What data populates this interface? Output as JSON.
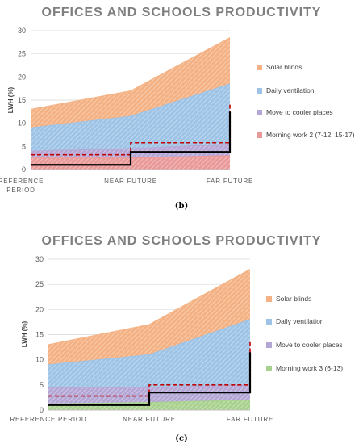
{
  "chart_data": [
    {
      "type": "area",
      "title": "OFFICES AND SCHOOLS PRODUCTIVITY",
      "caption": "(b)",
      "ylabel": "LWH (%)",
      "ylim": [
        0,
        30
      ],
      "yticks": [
        "0",
        "5",
        "10",
        "15",
        "20",
        "25",
        "30"
      ],
      "categories": [
        "REFERENCE\nPERIOD",
        "NEAR FUTURE",
        "FAR FUTURE"
      ],
      "series": [
        {
          "name": "Solar blinds",
          "values": [
            13,
            17,
            28.5
          ],
          "color": "#f4b183"
        },
        {
          "name": "Daily ventilation",
          "values": [
            9,
            11.5,
            18.5
          ],
          "color": "#9dc3e6"
        },
        {
          "name": "Move to cooler places",
          "values": [
            4,
            4.5,
            5.5
          ],
          "color": "#b4a7d6"
        },
        {
          "name": "Morning work 2 (7-12; 15-17)",
          "values": [
            2.5,
            2.5,
            3
          ],
          "color": "#ea9999"
        }
      ],
      "dashed_steps": [
        3.2,
        5.8,
        14.5
      ],
      "solid_steps": [
        1,
        3.8,
        12.5
      ]
    },
    {
      "type": "area",
      "title": "OFFICES AND SCHOOLS PRODUCTIVITY",
      "caption": "(c)",
      "ylabel": "LWH (%)",
      "ylim": [
        0,
        30
      ],
      "yticks": [
        "0",
        "5",
        "10",
        "15",
        "20",
        "25",
        "30"
      ],
      "categories": [
        "REFERENCE PERIOD",
        "NEAR FUTURE",
        "FAR FUTURE"
      ],
      "series": [
        {
          "name": "Solar blinds",
          "values": [
            13,
            17,
            28
          ],
          "color": "#f4b183"
        },
        {
          "name": "Daily ventilation",
          "values": [
            9,
            11,
            18
          ],
          "color": "#9dc3e6"
        },
        {
          "name": "Move to cooler places",
          "values": [
            4.5,
            4.5,
            5
          ],
          "color": "#b4a7d6"
        },
        {
          "name": "Morning work 3 (6-13)",
          "values": [
            1.2,
            1.5,
            2
          ],
          "color": "#a9d18e"
        }
      ],
      "dashed_steps": [
        2.8,
        5,
        13.5
      ],
      "solid_steps": [
        1,
        3.5,
        11.5
      ]
    }
  ]
}
